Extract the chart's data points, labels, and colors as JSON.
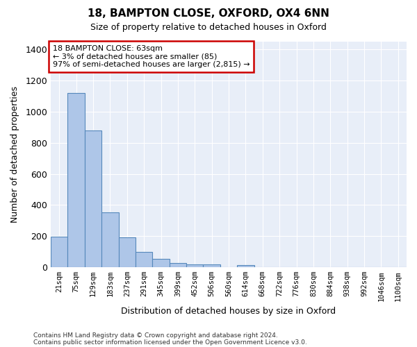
{
  "title": "18, BAMPTON CLOSE, OXFORD, OX4 6NN",
  "subtitle": "Size of property relative to detached houses in Oxford",
  "xlabel": "Distribution of detached houses by size in Oxford",
  "ylabel": "Number of detached properties",
  "footnote1": "Contains HM Land Registry data © Crown copyright and database right 2024.",
  "footnote2": "Contains public sector information licensed under the Open Government Licence v3.0.",
  "annotation_line1": "18 BAMPTON CLOSE: 63sqm",
  "annotation_line2": "← 3% of detached houses are smaller (85)",
  "annotation_line3": "97% of semi-detached houses are larger (2,815) →",
  "bar_color": "#aec6e8",
  "bar_edge_color": "#5588bb",
  "bg_color": "#e8eef8",
  "annotation_box_color": "#cc0000",
  "categories": [
    "21sqm",
    "75sqm",
    "129sqm",
    "183sqm",
    "237sqm",
    "291sqm",
    "345sqm",
    "399sqm",
    "452sqm",
    "506sqm",
    "560sqm",
    "614sqm",
    "668sqm",
    "722sqm",
    "776sqm",
    "830sqm",
    "884sqm",
    "938sqm",
    "992sqm",
    "1046sqm",
    "1100sqm"
  ],
  "values": [
    197,
    1118,
    878,
    352,
    192,
    100,
    52,
    25,
    18,
    18,
    0,
    13,
    0,
    0,
    0,
    0,
    0,
    0,
    0,
    0,
    0
  ],
  "ylim": [
    0,
    1450
  ],
  "yticks": [
    0,
    200,
    400,
    600,
    800,
    1000,
    1200,
    1400
  ]
}
